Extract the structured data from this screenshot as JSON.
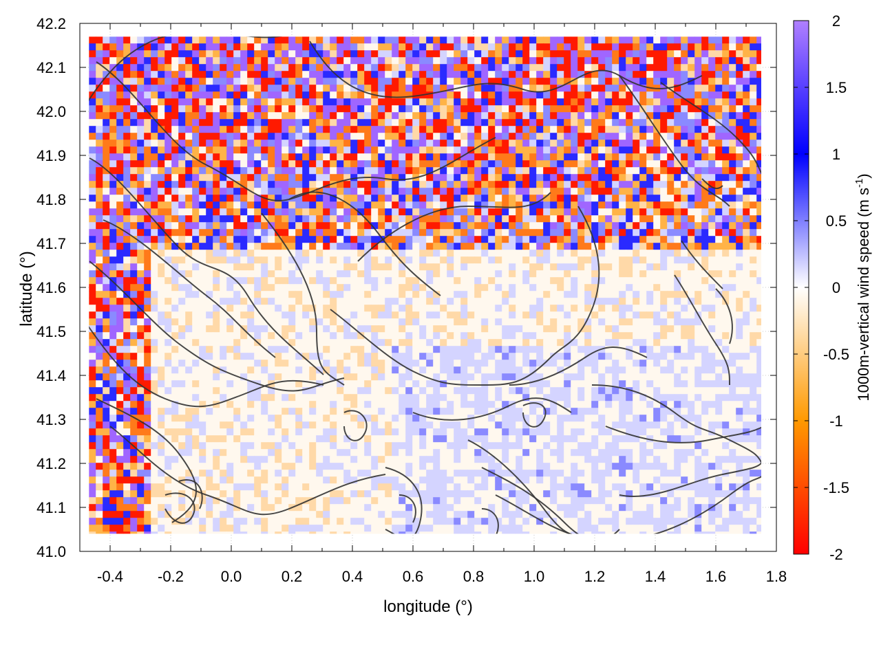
{
  "chart_data": {
    "type": "heatmap",
    "title": "",
    "xlabel": "longitude (°)",
    "ylabel": "latitude (°)",
    "xlim": [
      -0.5,
      1.8
    ],
    "ylim": [
      41.0,
      42.2
    ],
    "x_ticks": [
      "-0.4",
      "-0.2",
      "0.0",
      "0.2",
      "0.4",
      "0.6",
      "0.8",
      "1.0",
      "1.2",
      "1.4",
      "1.6",
      "1.8"
    ],
    "y_ticks": [
      "41.0",
      "41.1",
      "41.2",
      "41.3",
      "41.4",
      "41.5",
      "41.6",
      "41.7",
      "41.8",
      "41.9",
      "42.0",
      "42.1",
      "42.2"
    ],
    "grid": "dotted",
    "data_extent": {
      "lon": [
        -0.47,
        1.75
      ],
      "lat": [
        41.04,
        42.17
      ]
    },
    "colorbar": {
      "label": "1000m-vertical wind speed (m s",
      "label_superscript": "-1",
      "label_suffix": ")",
      "range": [
        -2,
        2
      ],
      "ticks": [
        "2",
        "1.5",
        "1",
        "0.5",
        "0",
        "-0.5",
        "-1",
        "-1.5",
        "-2"
      ],
      "colors": [
        "#ff0000",
        "#ff8800",
        "#ffa500",
        "#ffffff",
        "#0000ff",
        "#a066ff"
      ]
    },
    "overlay": "terrain elevation contour lines (dark grey)"
  }
}
